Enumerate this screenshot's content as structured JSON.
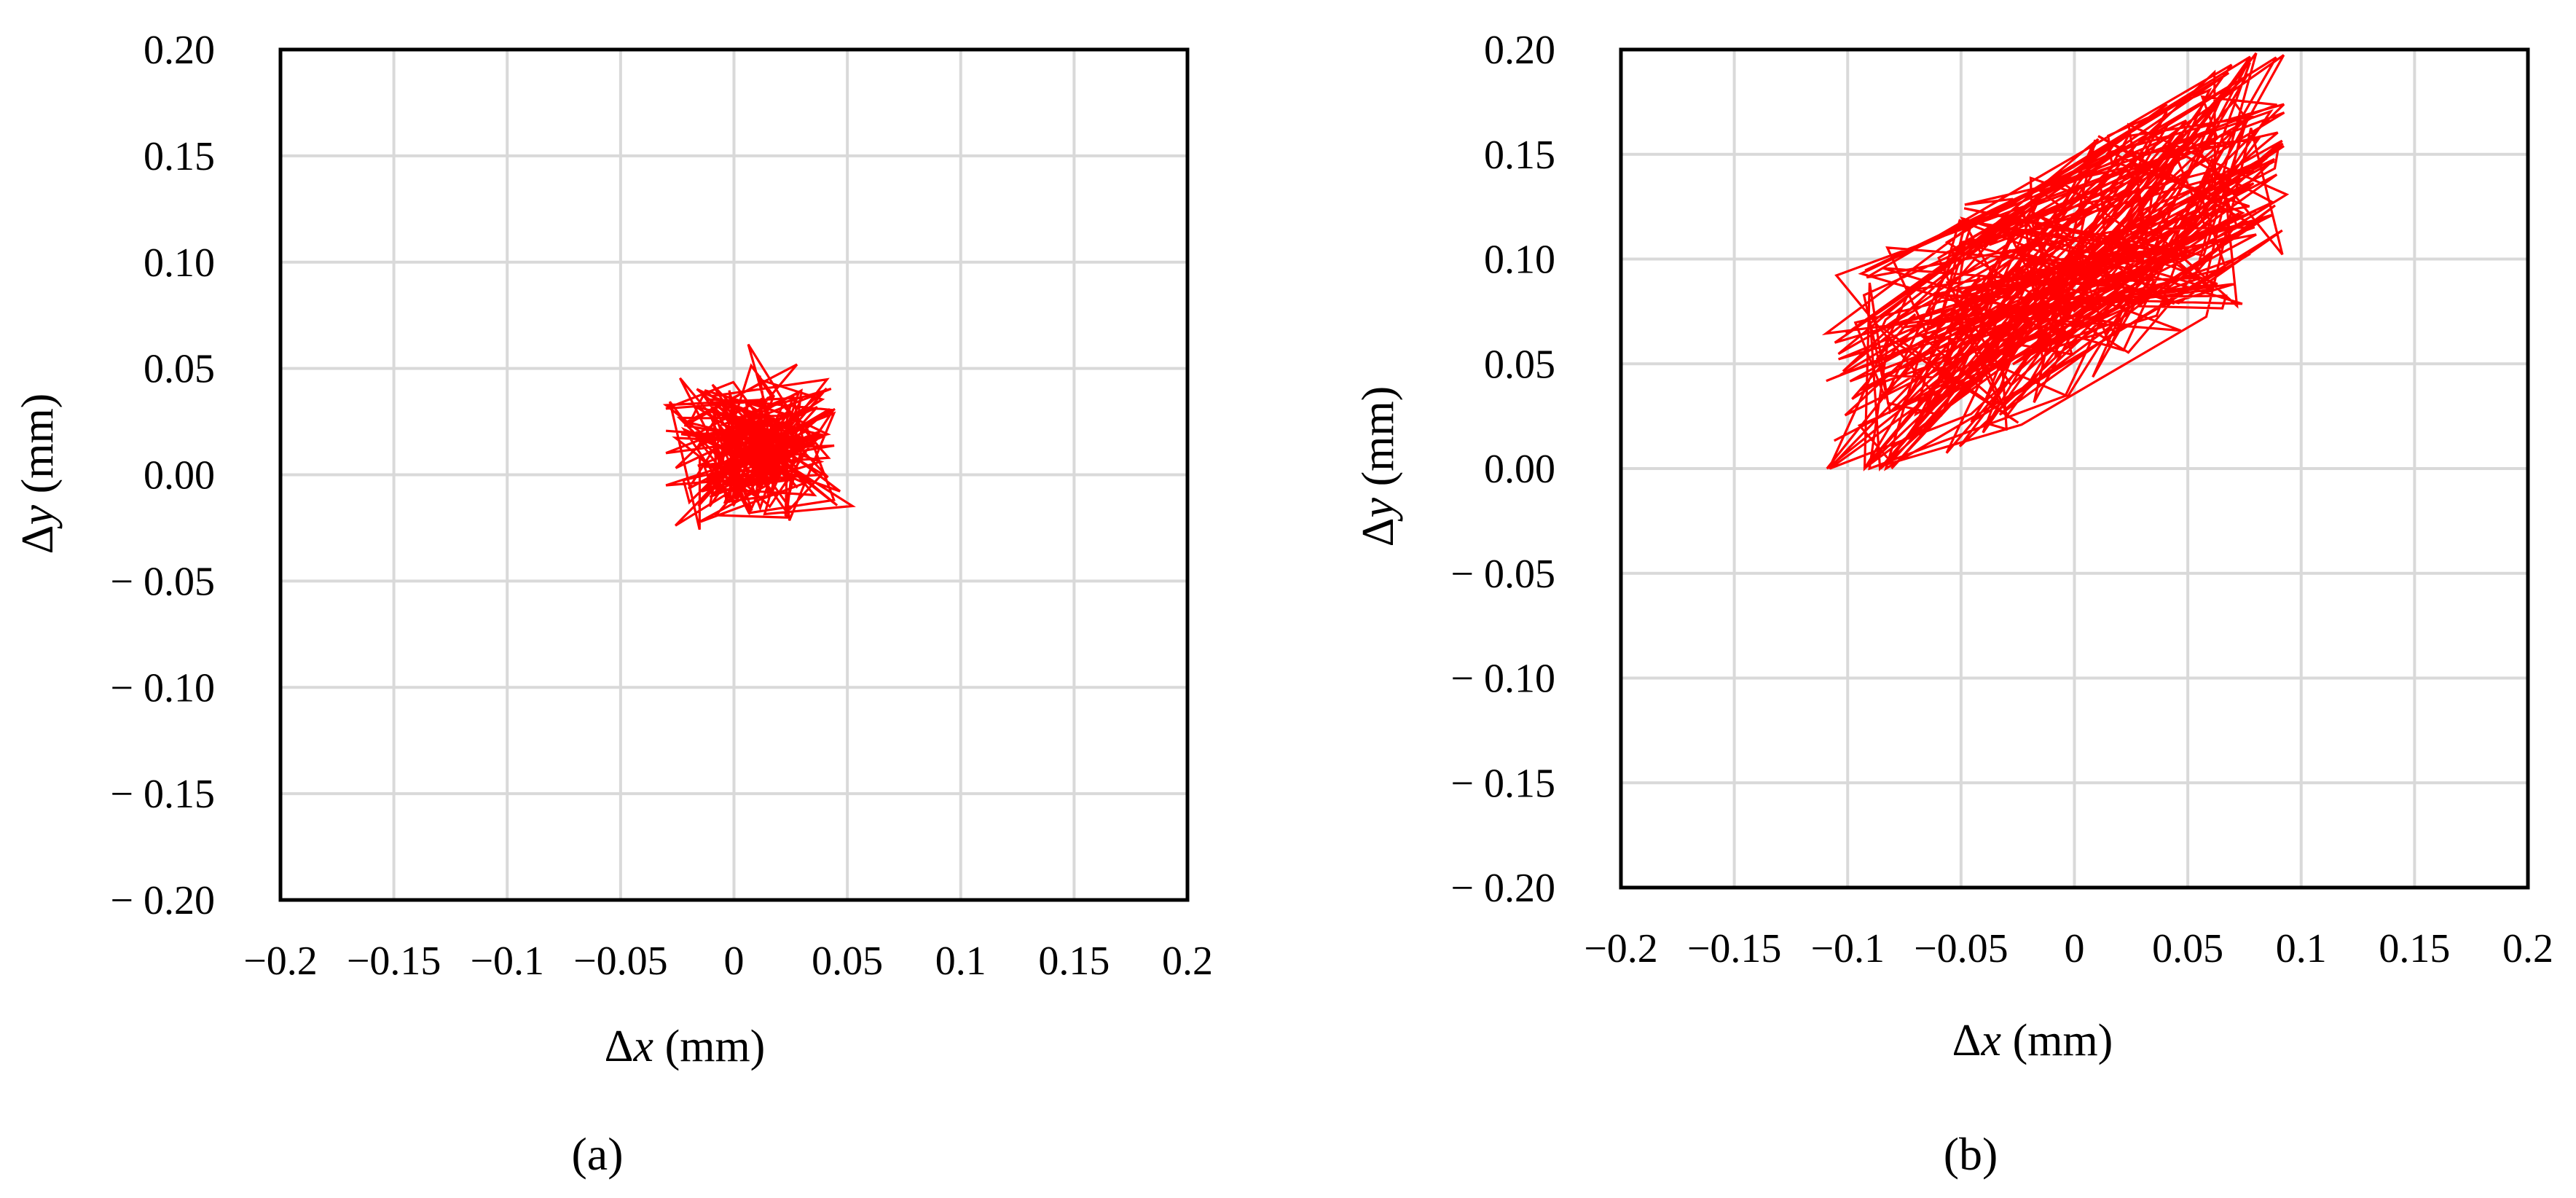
{
  "figure": {
    "panels": [
      "(a)",
      "(b)"
    ]
  },
  "chart_data": [
    {
      "type": "line",
      "panel": "(a)",
      "xlabel_symbol": "Δ",
      "xlabel_var": "x",
      "xlabel_unit": " (mm)",
      "ylabel_symbol": "Δ",
      "ylabel_var": "y",
      "ylabel_unit": " (mm)",
      "xlim": [
        -0.2,
        0.2
      ],
      "ylim": [
        -0.2,
        0.2
      ],
      "x_ticks": [
        -0.2,
        -0.15,
        -0.1,
        -0.05,
        0,
        0.05,
        0.1,
        0.15,
        0.2
      ],
      "x_tick_labels": [
        "−0.2",
        "−0.15",
        "−0.1",
        "−0.05",
        "0",
        "0.05",
        "0.1",
        "0.15",
        "0.2"
      ],
      "y_ticks": [
        0.2,
        0.15,
        0.1,
        0.05,
        0,
        -0.05,
        -0.1,
        -0.15,
        -0.2
      ],
      "y_tick_labels": [
        "0.20",
        "0.15",
        "0.10",
        "0.05",
        "0.00",
        "− 0.05",
        "− 0.10",
        "− 0.15",
        "− 0.20"
      ],
      "grid": true,
      "series_color": "#ff0000",
      "trajectory_center": [
        0.005,
        0.015
      ],
      "trajectory_spread": [
        0.045,
        0.04
      ],
      "trajectory_x_range": [
        -0.03,
        0.062
      ],
      "trajectory_y_range": [
        -0.028,
        0.078
      ],
      "trajectory_points": 260
    },
    {
      "type": "line",
      "panel": "(b)",
      "xlabel_symbol": "Δ",
      "xlabel_var": "x",
      "xlabel_unit": " (mm)",
      "ylabel_symbol": "Δ",
      "ylabel_var": "y",
      "ylabel_unit": " (mm)",
      "xlim": [
        -0.2,
        0.2
      ],
      "ylim": [
        -0.2,
        0.2
      ],
      "x_ticks": [
        -0.2,
        -0.15,
        -0.1,
        -0.05,
        0,
        0.05,
        0.1,
        0.15,
        0.2
      ],
      "x_tick_labels": [
        "−0.2",
        "−0.15",
        "−0.1",
        "−0.05",
        "0",
        "0.05",
        "0.1",
        "0.15",
        "0.2"
      ],
      "y_ticks": [
        0.2,
        0.15,
        0.1,
        0.05,
        0,
        -0.05,
        -0.1,
        -0.15,
        -0.2
      ],
      "y_tick_labels": [
        "0.20",
        "0.15",
        "0.10",
        "0.05",
        "0.00",
        "− 0.05",
        "− 0.10",
        "− 0.15",
        "− 0.20"
      ],
      "grid": true,
      "series_color": "#ff0000",
      "trajectory_x_range": [
        -0.11,
        0.095
      ],
      "trajectory_y_range": [
        0.0,
        0.2
      ],
      "trajectory_trend": {
        "x0": -0.11,
        "y0": 0.03,
        "x1": 0.095,
        "y1": 0.15
      },
      "trajectory_band": 0.06,
      "trajectory_points": 320
    }
  ]
}
